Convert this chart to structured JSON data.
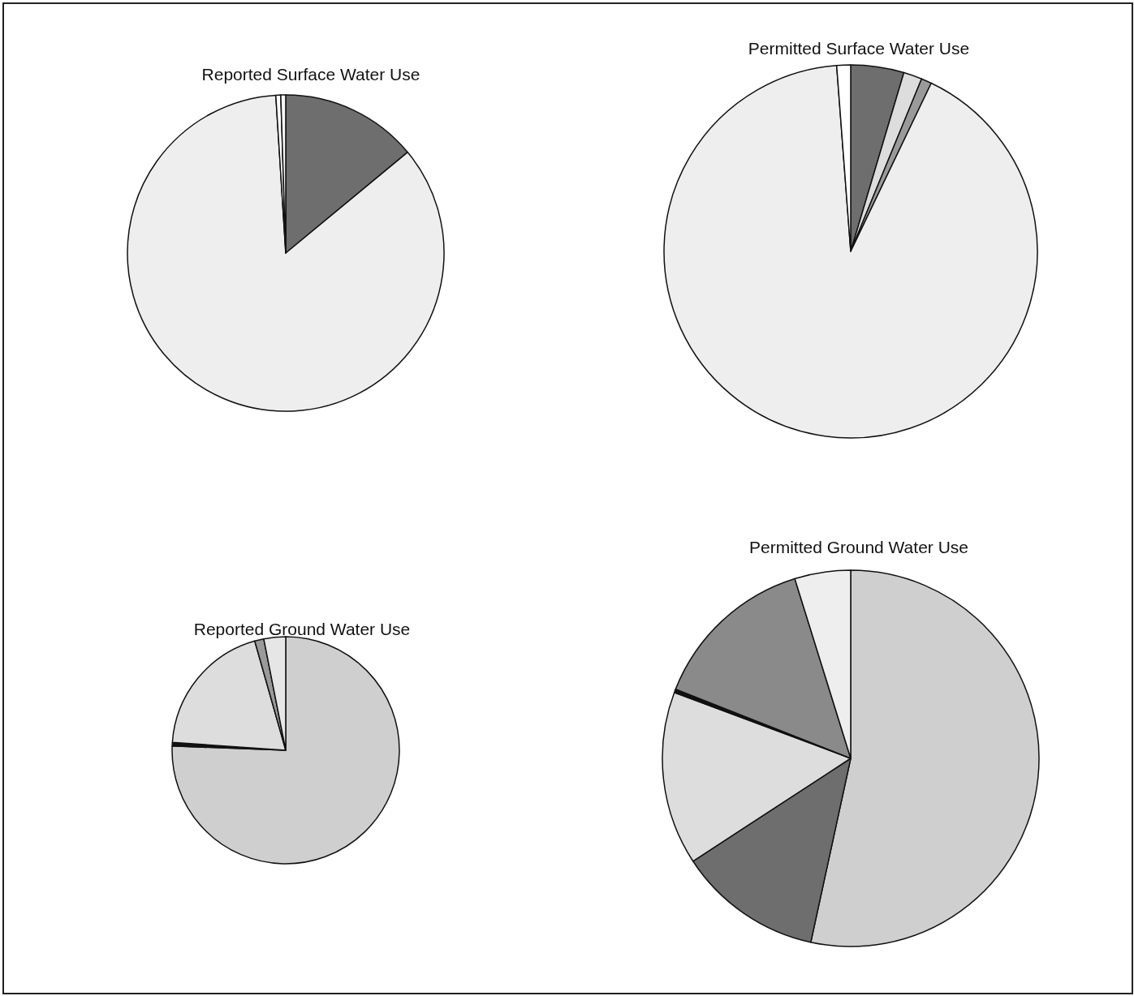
{
  "chart_data": [
    {
      "type": "pie",
      "title": "Reported Surface Water Use",
      "categories": [
        null,
        null,
        null,
        null
      ],
      "values": [
        14,
        85,
        0.5,
        0.5
      ],
      "colors": [
        "#6e6e6e",
        "#eeeeee",
        "#ffffff",
        "#f6f6f6"
      ]
    },
    {
      "type": "pie",
      "title": "Permitted Surface Water Use",
      "categories": [
        null,
        null,
        null,
        null,
        null
      ],
      "values": [
        4.6,
        1.6,
        0.9,
        91.7,
        1.2
      ],
      "colors": [
        "#6e6e6e",
        "#dddddd",
        "#9a9a9a",
        "#eeeeee",
        "#ffffff"
      ]
    },
    {
      "type": "pie",
      "title": "Reported Ground Water Use",
      "categories": [
        null,
        null,
        null,
        null,
        null
      ],
      "values": [
        75.6,
        0.5,
        19.5,
        1.3,
        3.1
      ],
      "colors": [
        "#cfcfcf",
        "#111111",
        "#dddddd",
        "#9a9a9a",
        "#e6e6e6"
      ]
    },
    {
      "type": "pie",
      "title": "Permitted Ground Water Use",
      "categories": [
        null,
        null,
        null,
        null,
        null,
        null
      ],
      "values": [
        53.4,
        12.4,
        14.9,
        0.3,
        14.2,
        4.8
      ],
      "colors": [
        "#cfcfcf",
        "#6e6e6e",
        "#dddddd",
        "#111111",
        "#8a8a8a",
        "#eeeeee"
      ]
    }
  ]
}
